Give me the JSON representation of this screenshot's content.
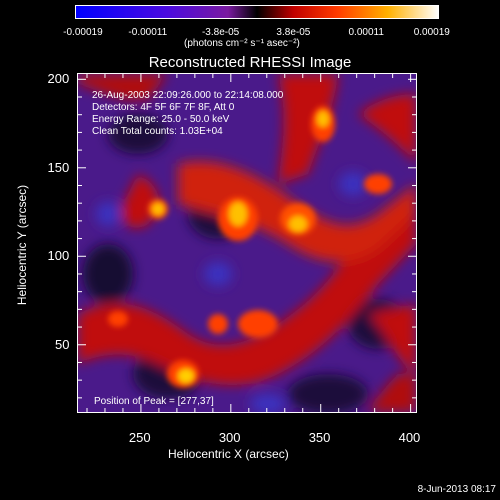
{
  "colorbar": {
    "ticks": [
      "-0.00019",
      "-0.00011",
      "-3.8e-05",
      "3.8e-05",
      "0.00011",
      "0.00019"
    ],
    "units": "(photons cm⁻² s⁻¹ asec⁻²)",
    "colors": [
      "#0000ff",
      "#5a00d8",
      "#8a1aa8",
      "#000000",
      "#b00000",
      "#ff4400",
      "#ffb000",
      "#ffffff"
    ]
  },
  "title": "Reconstructed RHESSI Image",
  "annotations": {
    "line1": "26-Aug-2003 22:09:26.000 to 22:14:08.000",
    "line2": "Detectors: 4F 5F 6F 7F 8F, Att 0",
    "line3": "Energy Range: 25.0 - 50.0 keV",
    "line4": "Clean     Total counts: 1.03E+04",
    "peak": "Position of Peak = [277,37]"
  },
  "axes": {
    "xlabel": "Heliocentric X (arcsec)",
    "ylabel": "Heliocentric Y (arcsec)",
    "xticks": [
      "250",
      "300",
      "350",
      "400"
    ],
    "yticks": [
      "50",
      "100",
      "150",
      "200"
    ],
    "xlim": [
      215,
      403
    ],
    "ylim": [
      12,
      203
    ]
  },
  "footer": "8-Jun-2013 08:17"
}
